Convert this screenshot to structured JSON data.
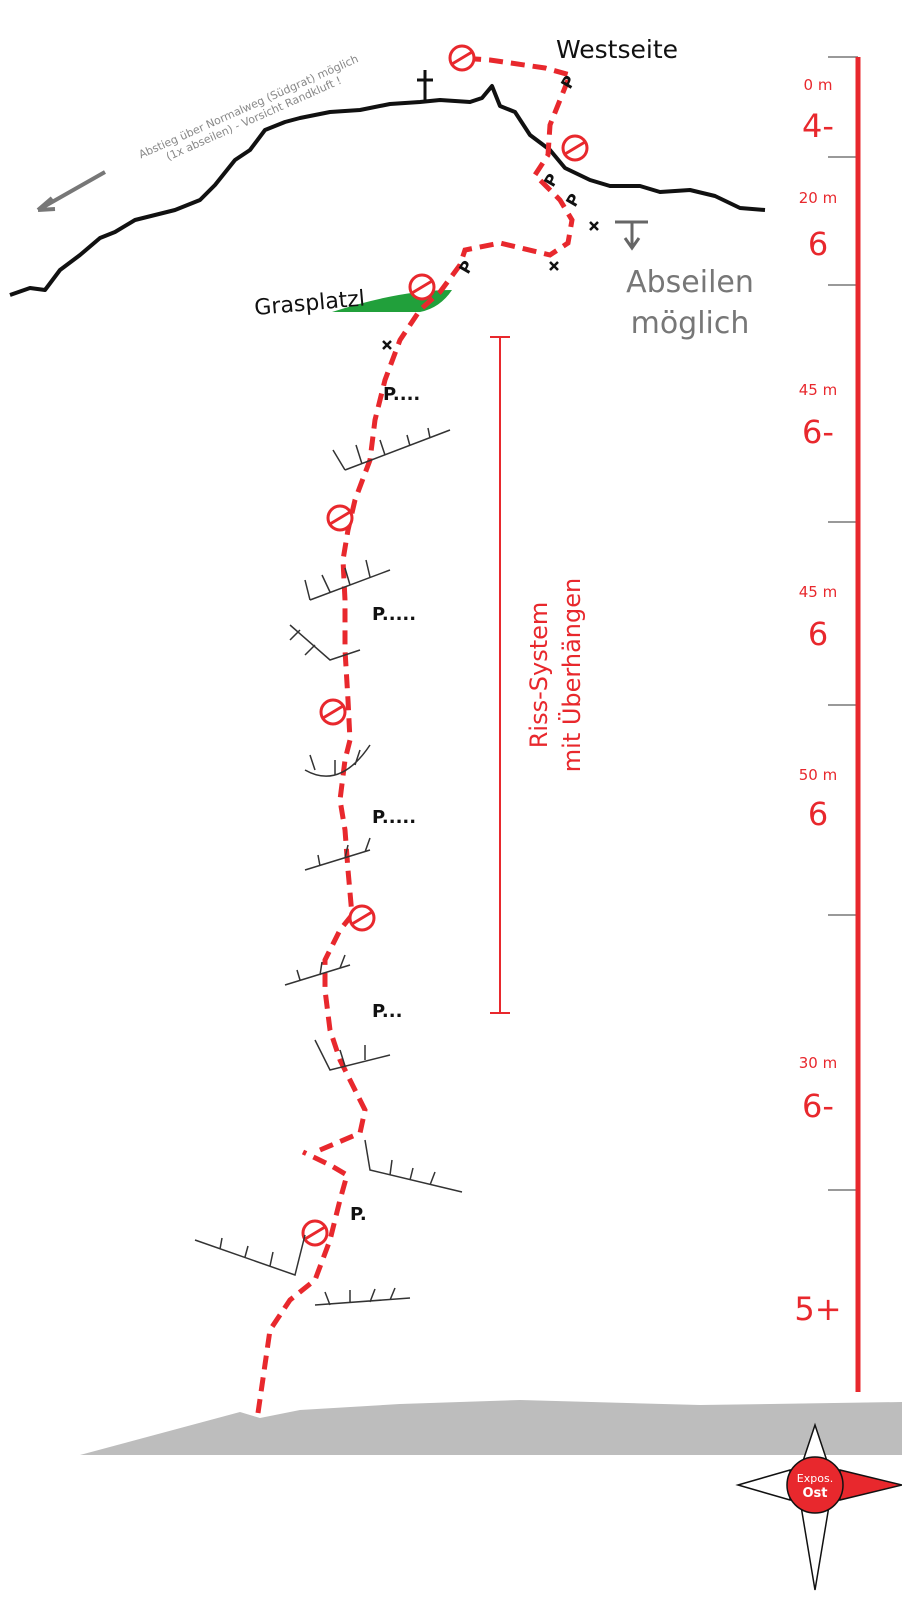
{
  "descent_note": {
    "line1": "Abstieg über Normalweg (Südgrat) möglich",
    "line2": "(1x abseilen) - Vorsicht Randkluft !"
  },
  "face_label": "Westseite",
  "ledge_label": "Grasplatzl",
  "rappel_note": {
    "line1": "Abseilen",
    "line2": "möglich"
  },
  "crack_note": {
    "line1": "Riss-System",
    "line2": "mit Überhängen"
  },
  "pitches": [
    {
      "length": "0 m",
      "grade": "4-"
    },
    {
      "length": "20 m",
      "grade": "6"
    },
    {
      "length": "45 m",
      "grade": "6-"
    },
    {
      "length": "45 m",
      "grade": "6"
    },
    {
      "length": "50 m",
      "grade": "6"
    },
    {
      "length": "30 m",
      "grade": "6-"
    },
    {
      "grade": "5+"
    }
  ],
  "protection": [
    "P....",
    "P.....",
    "P.....",
    "P...",
    "P.",
    "P",
    "P",
    "P",
    "P"
  ],
  "compass": {
    "line1": "Expos.",
    "line2": "Ost"
  }
}
